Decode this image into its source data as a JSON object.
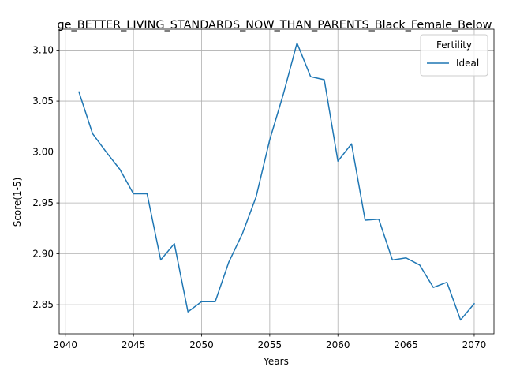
{
  "chart_data": {
    "type": "line",
    "title": "ge_BETTER_LIVING_STANDARDS_NOW_THAN_PARENTS_Black_Female_Below",
    "xlabel": "Years",
    "ylabel": "Score(1-5)",
    "xlim": [
      2039.55,
      2071.45
    ],
    "ylim": [
      2.8214,
      3.1206
    ],
    "xticks": [
      2040,
      2045,
      2050,
      2055,
      2060,
      2065,
      2070
    ],
    "yticks": [
      2.85,
      2.9,
      2.95,
      3.0,
      3.05,
      3.1
    ],
    "xtick_labels": [
      "2040",
      "2045",
      "2050",
      "2055",
      "2060",
      "2065",
      "2070"
    ],
    "ytick_labels": [
      "2.85",
      "2.90",
      "2.95",
      "3.00",
      "3.05",
      "3.10"
    ],
    "grid": true,
    "legend": {
      "title": "Fertility",
      "placement": "top-right"
    },
    "x": [
      2041,
      2042,
      2043,
      2044,
      2045,
      2046,
      2047,
      2048,
      2049,
      2050,
      2051,
      2052,
      2053,
      2054,
      2055,
      2056,
      2057,
      2058,
      2059,
      2060,
      2061,
      2062,
      2063,
      2064,
      2065,
      2066,
      2067,
      2068,
      2069,
      2070
    ],
    "series": [
      {
        "name": "Ideal",
        "color": "#1f77b4",
        "values": [
          3.059,
          3.018,
          3.0,
          2.983,
          2.959,
          2.959,
          2.894,
          2.91,
          2.843,
          2.853,
          2.853,
          2.892,
          2.92,
          2.956,
          3.012,
          3.057,
          3.107,
          3.074,
          3.071,
          2.991,
          3.008,
          2.933,
          2.934,
          2.894,
          2.896,
          2.889,
          2.867,
          2.872,
          2.835,
          2.851
        ]
      }
    ]
  }
}
